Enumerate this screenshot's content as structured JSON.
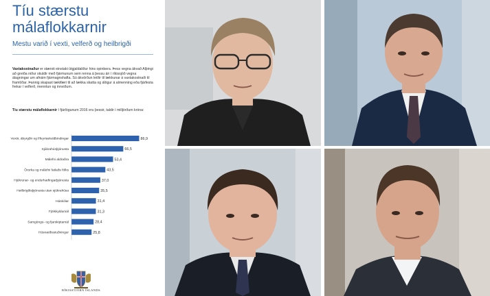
{
  "document": {
    "title_line1": "Tíu stærstu",
    "title_line2": "málaflokkarnir",
    "subtitle": "Mestu varið í vexti, velferð og heilbrigði",
    "intro": {
      "lead": "Vaxtakostnaður",
      "text": " er stærsti einstaki útgjaldaliður hins opinbera. Þess vegna ákvað Alþingi að greiða niður skuldir með fjármunum sem renna á þessu ári í ríkissjóð vegna álagningar um afnám fjármagnshafta. Sú ákvörðun leiðir til lækkunar á vaxtakostnaði til framtíðar. Þannig skapast tækifæri til að lækka skatta og álögur á almenning eða fjárfesta frekar í velferð, menntun og innviðum."
    },
    "chart_intro": {
      "lead": "Tíu stærstu málaflokkarnir",
      "text": " í fjárlögunum 2016 eru þessir, taldir í milljörðum króna:"
    },
    "footer": "RÍKISSTJÓRN ÍSLANDS"
  },
  "chart_data": {
    "type": "bar",
    "orientation": "horizontal",
    "categories": [
      "Vextir, ábyrgðir og lífeyrisskuldbindingar",
      "Sjúkrahúsþjónusta",
      "Málefni aldraðra",
      "Örorka og málefni fatlaðs fólks",
      "Hjúkrunar- og endurhæfingarþjónusta",
      "Heilbrigðisþjónusta utan sjúkrahúsa",
      "Háskólar",
      "Fjölskyldumál",
      "Samgöngu- og fjarskiptamál",
      "Húsnæðisstuðningur"
    ],
    "values": [
      86.9,
      66.5,
      53.4,
      43.5,
      37.0,
      35.5,
      31.4,
      31.3,
      28.4,
      25.8
    ],
    "value_labels": [
      "86,9",
      "66,5",
      "53,4",
      "43,5",
      "37,0",
      "35,5",
      "31,4",
      "31,3",
      "28,4",
      "25,8"
    ],
    "xlim": [
      0,
      90
    ],
    "grid": false,
    "bar_color": "#2f62ad"
  },
  "photos": [
    {
      "icon": "portrait-man-glasses",
      "background": "#d8dadc",
      "jacket": "#1f1f1f",
      "skin": "#e0b9a0",
      "hair": "#9a8163"
    },
    {
      "icon": "portrait-man-suit",
      "background": "#b9c9d8",
      "jacket": "#1b2a44",
      "skin": "#d8a891",
      "hair": "#4a3a2f"
    },
    {
      "icon": "portrait-man-suit-tie",
      "background": "#c9d0d6",
      "jacket": "#1a1e27",
      "skin": "#e2b49e",
      "hair": "#3b2a20"
    },
    {
      "icon": "portrait-man-open-collar",
      "background": "#c8c4bd",
      "jacket": "#2b2f38",
      "skin": "#d6a48b",
      "hair": "#4b3628"
    }
  ]
}
